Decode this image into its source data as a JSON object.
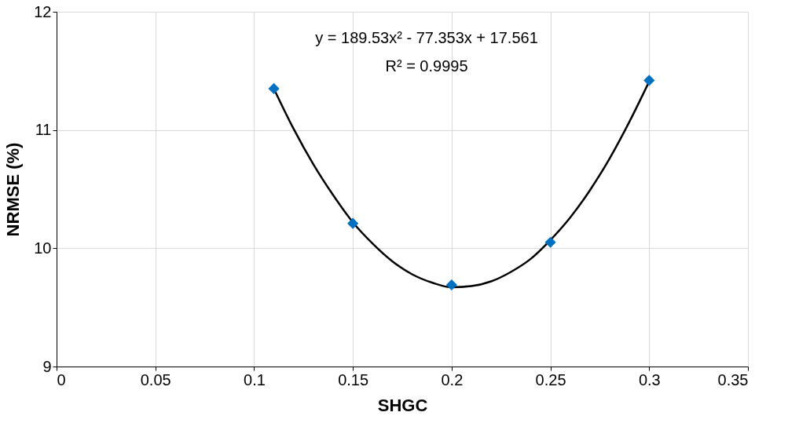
{
  "chart_data": {
    "type": "scatter",
    "xlabel": "SHGC",
    "ylabel": "NRMSE (%)",
    "annotations": [
      "y = 189.53x² - 77.353x + 17.561",
      "R² = 0.9995"
    ],
    "xlim": [
      0,
      0.35
    ],
    "xticks": [
      0,
      0.05,
      0.1,
      0.15,
      0.2,
      0.25,
      0.3,
      0.35
    ],
    "ylim": [
      9,
      12
    ],
    "yticks": [
      9,
      10,
      11,
      12
    ],
    "grid": true,
    "series": [
      {
        "type": "scatter",
        "marker": "diamond",
        "color": "#0070c0",
        "x": [
          0.11,
          0.15,
          0.2,
          0.25,
          0.3
        ],
        "values": [
          11.35,
          10.21,
          9.69,
          10.05,
          11.42
        ]
      },
      {
        "type": "line",
        "color": "#000000",
        "line_style": "solid",
        "x": [
          0.11,
          0.12,
          0.13,
          0.14,
          0.15,
          0.16,
          0.17,
          0.18,
          0.19,
          0.2,
          0.21,
          0.22,
          0.23,
          0.24,
          0.25,
          0.26,
          0.27,
          0.28,
          0.29,
          0.3
        ],
        "values": [
          11.35,
          11.01,
          10.71,
          10.45,
          10.22,
          10.04,
          9.89,
          9.78,
          9.71,
          9.67,
          9.68,
          9.72,
          9.8,
          9.91,
          10.07,
          10.26,
          10.49,
          10.76,
          11.07,
          11.41
        ]
      }
    ]
  }
}
